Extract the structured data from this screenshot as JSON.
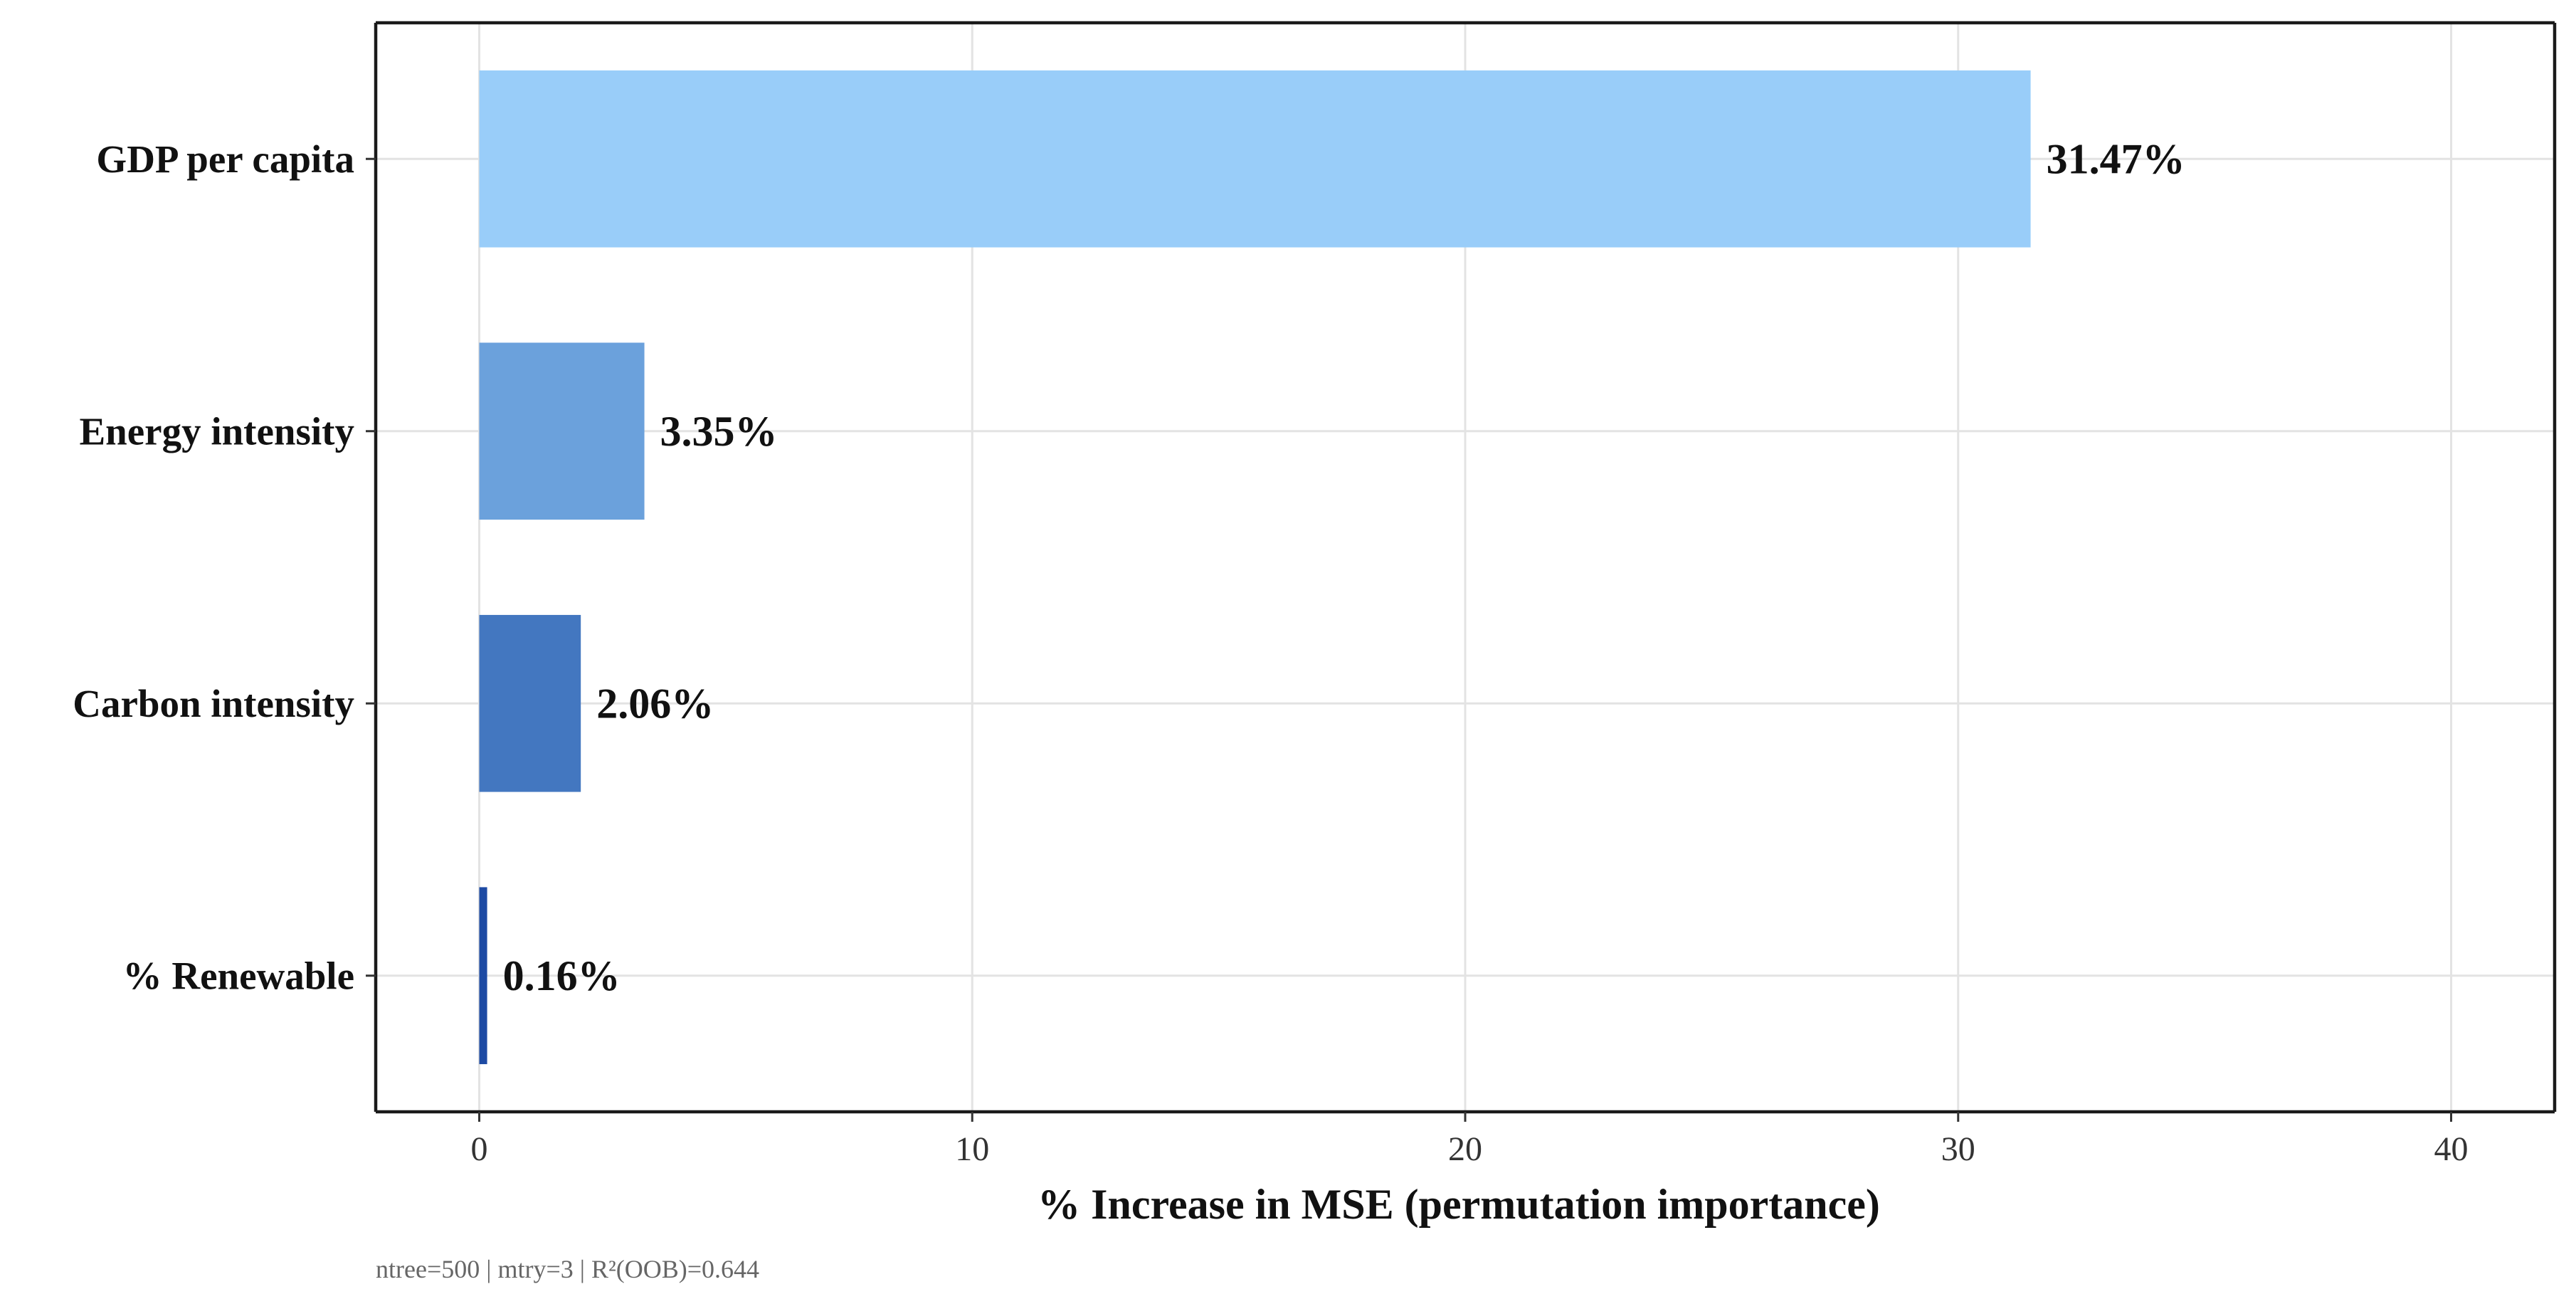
{
  "chart_data": {
    "type": "bar",
    "orientation": "horizontal",
    "categories": [
      "GDP per capita",
      "Energy intensity",
      "Carbon intensity",
      "% Renewable"
    ],
    "values": [
      31.47,
      3.35,
      2.06,
      0.16
    ],
    "data_labels": [
      "31.47%",
      "3.35%",
      "2.06%",
      "0.16%"
    ],
    "bar_colors": [
      "#99cdf9",
      "#6ba1dc",
      "#4377c0",
      "#1d4aa3"
    ],
    "xlabel": "% Increase in MSE (permutation importance)",
    "ylabel": "",
    "xlim": [
      -2.1,
      42.1
    ],
    "xticks": [
      0,
      10,
      20,
      30,
      40
    ],
    "xtick_labels": [
      "0",
      "10",
      "20",
      "30",
      "40"
    ],
    "grid": true,
    "legend": "none",
    "caption": "ntree=500 | mtry=3 | R²(OOB)=0.644"
  }
}
